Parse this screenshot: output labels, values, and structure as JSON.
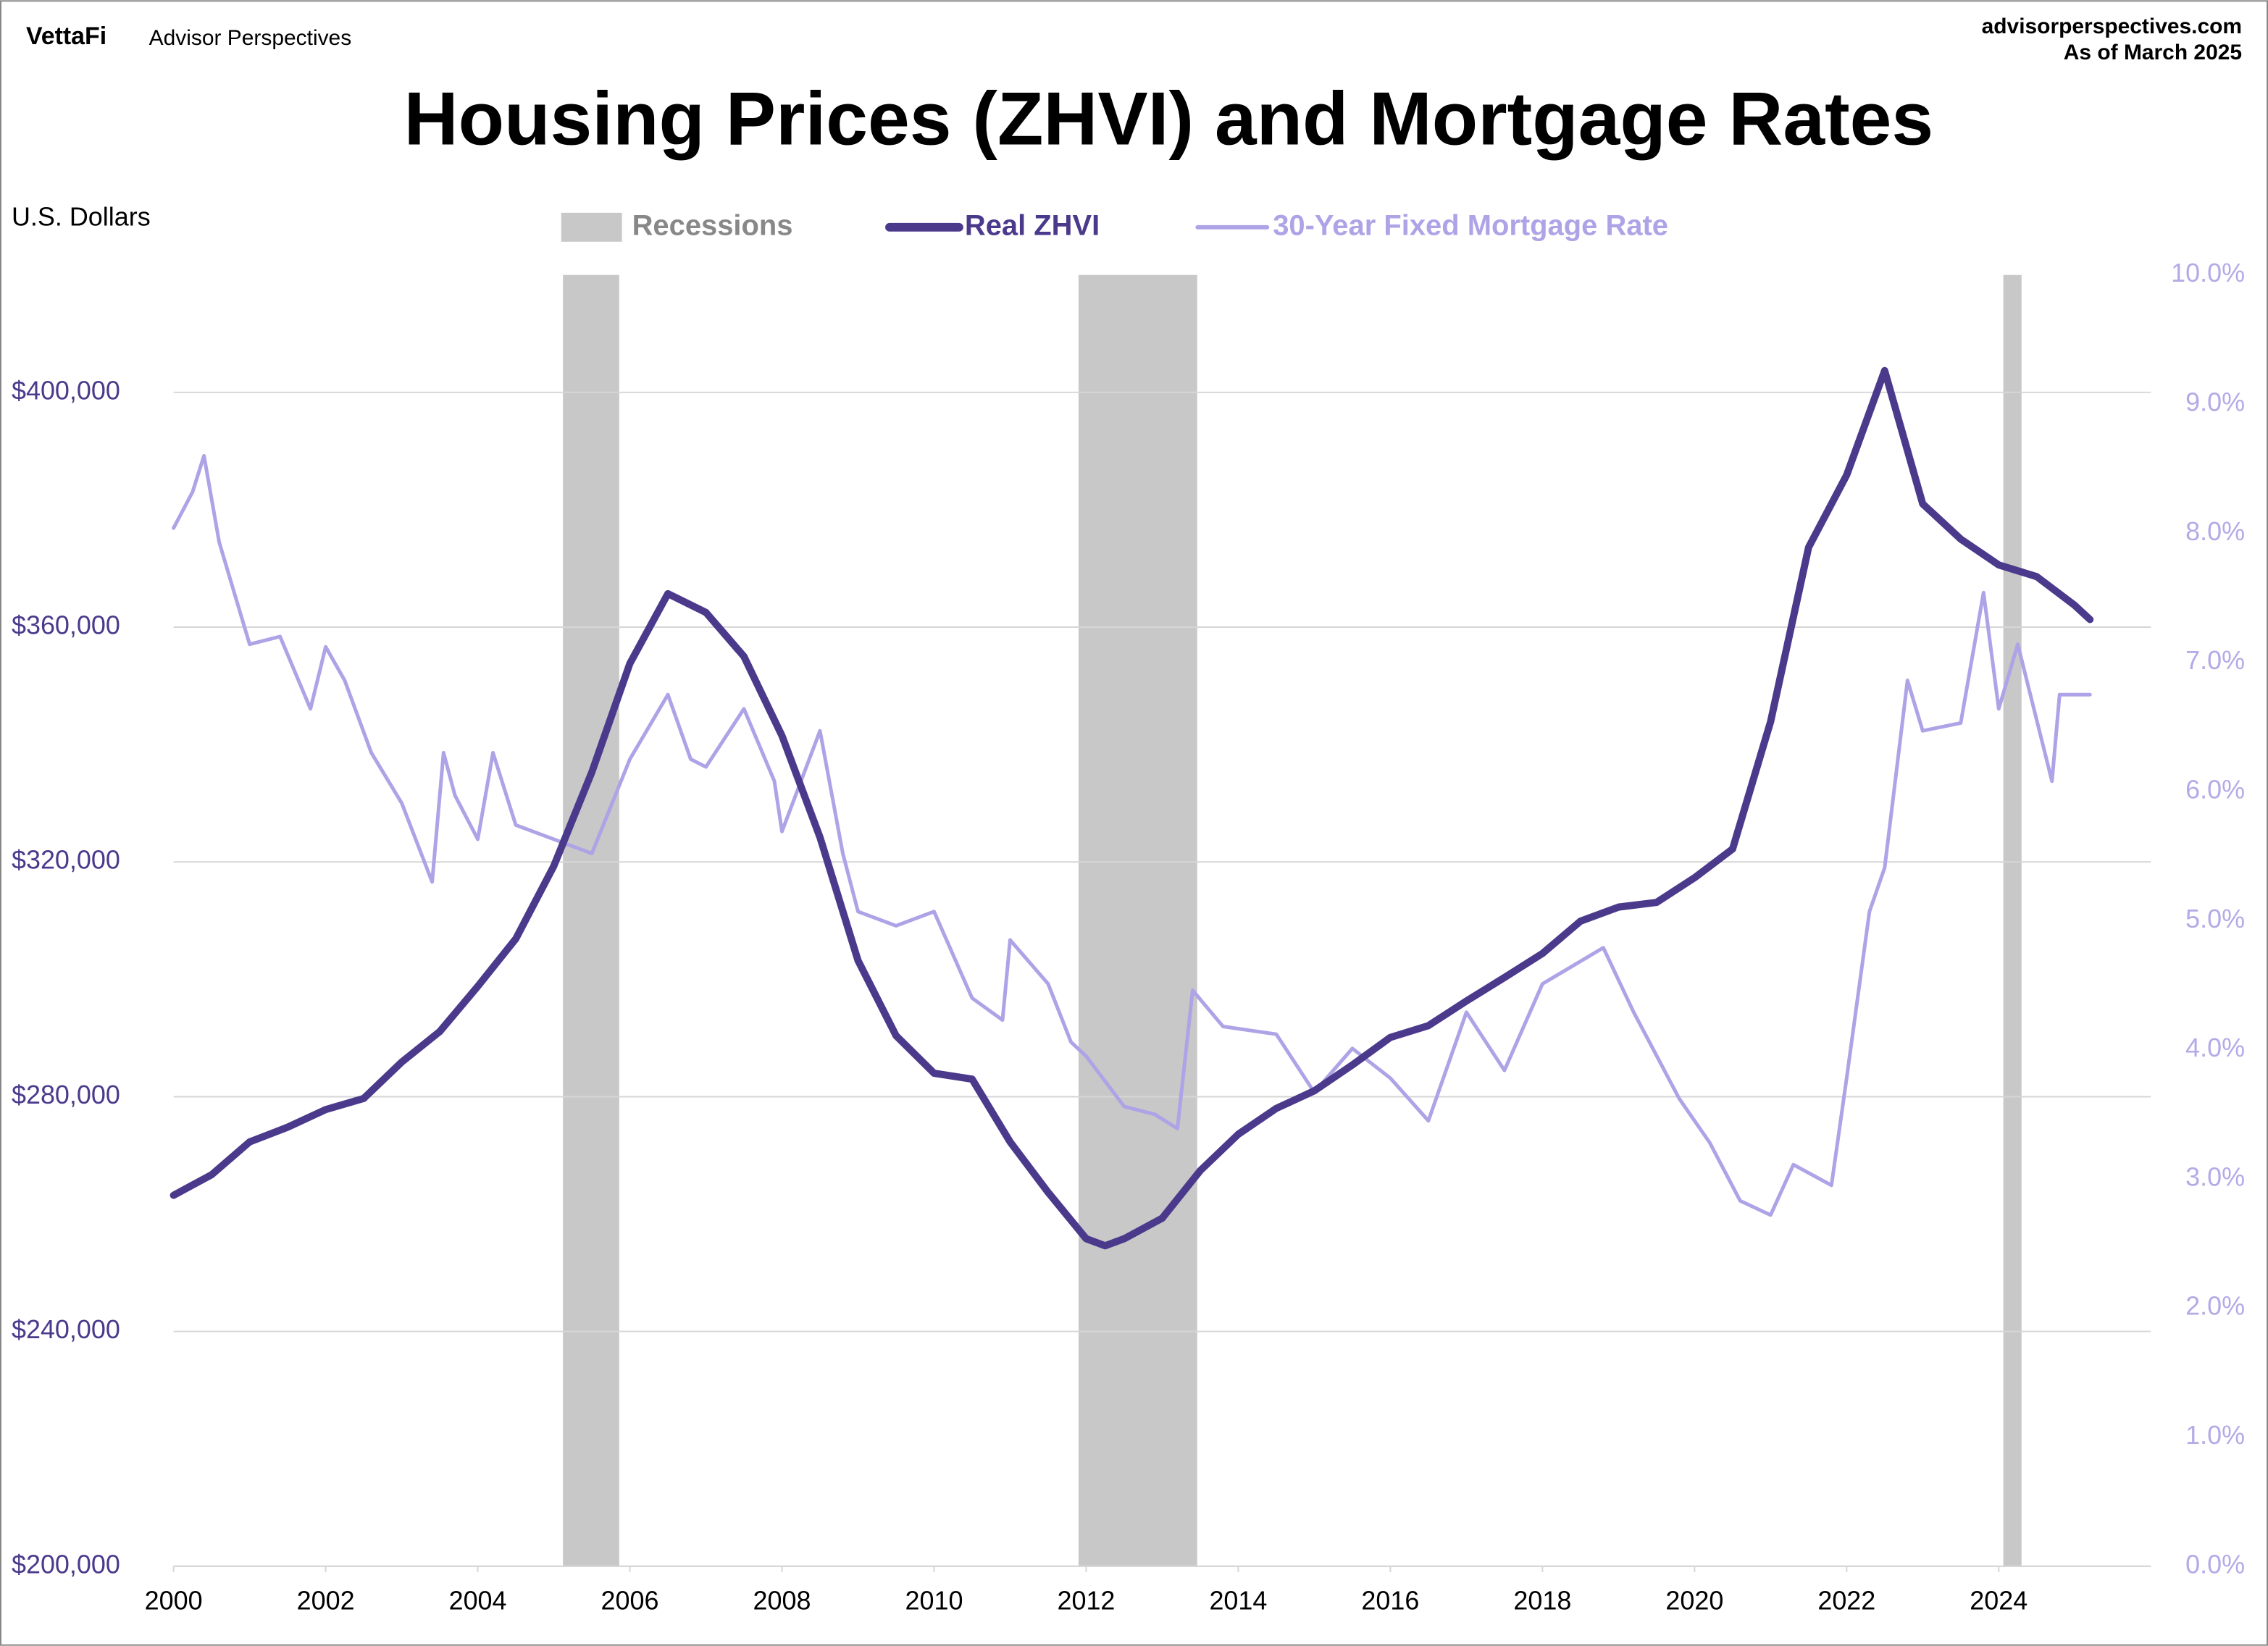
{
  "chart_data": {
    "type": "line",
    "brand": "VettaFi",
    "brand_sub": "Advisor Perspectives",
    "source": "advisorperspectives.com",
    "date_note": "As of March 2025",
    "title": "Housing Prices (ZHVI) and Mortgage Rates",
    "ylabel": "U.S. Dollars",
    "xlim": [
      2000,
      2026
    ],
    "xticks": [
      2000,
      2002,
      2004,
      2006,
      2008,
      2010,
      2012,
      2014,
      2016,
      2018,
      2020,
      2022,
      2024
    ],
    "ylim": [
      200000,
      420000
    ],
    "yticks": [
      {
        "value": 200000,
        "label": "$200,000"
      },
      {
        "value": 240000,
        "label": "$240,000"
      },
      {
        "value": 280000,
        "label": "$280,000"
      },
      {
        "value": 320000,
        "label": "$320,000"
      },
      {
        "value": 360000,
        "label": "$360,000"
      },
      {
        "value": 400000,
        "label": "$400,000"
      }
    ],
    "y2lim": [
      0,
      10
    ],
    "y2ticks": [
      {
        "value": 0,
        "label": "0.0%"
      },
      {
        "value": 1,
        "label": "1.0%"
      },
      {
        "value": 2,
        "label": "2.0%"
      },
      {
        "value": 3,
        "label": "3.0%"
      },
      {
        "value": 4,
        "label": "4.0%"
      },
      {
        "value": 5,
        "label": "5.0%"
      },
      {
        "value": 6,
        "label": "6.0%"
      },
      {
        "value": 7,
        "label": "7.0%"
      },
      {
        "value": 8,
        "label": "8.0%"
      },
      {
        "value": 9,
        "label": "9.0%"
      },
      {
        "value": 10,
        "label": "10.0%"
      }
    ],
    "grid": true,
    "recessions": {
      "name": "Recessions",
      "color": "#c8c8c8",
      "ranges": [
        [
          2005.12,
          2005.86
        ],
        [
          2011.9,
          2013.46
        ],
        [
          2024.06,
          2024.3
        ]
      ]
    },
    "series": [
      {
        "name": "Real ZHVI",
        "color": "#4b3a8c",
        "axis": "y",
        "x": [
          2000,
          2000.5,
          2001,
          2001.5,
          2002,
          2002.5,
          2003,
          2003.5,
          2004,
          2004.5,
          2005,
          2005.5,
          2006,
          2006.5,
          2007,
          2007.5,
          2008,
          2008.5,
          2009,
          2009.5,
          2010,
          2010.5,
          2011,
          2011.5,
          2012,
          2012.25,
          2012.5,
          2013,
          2013.5,
          2014,
          2014.5,
          2015,
          2015.5,
          2016,
          2016.5,
          2017,
          2017.5,
          2018,
          2018.5,
          2019,
          2019.5,
          2020,
          2020.5,
          2021,
          2021.5,
          2022,
          2022.5,
          2023,
          2023.5,
          2024,
          2024.5,
          2025,
          2025.2
        ],
        "values": [
          263200,
          266700,
          272300,
          274800,
          277800,
          279700,
          285900,
          291100,
          298800,
          306900,
          319300,
          335300,
          353800,
          365700,
          362500,
          355000,
          341500,
          324200,
          303200,
          290400,
          284000,
          283000,
          272300,
          263700,
          255800,
          254600,
          255800,
          259300,
          267400,
          273600,
          278000,
          281000,
          285400,
          290100,
          292100,
          296300,
          300300,
          304400,
          309900,
          312300,
          313100,
          317300,
          322200,
          343900,
          373600,
          385900,
          403700,
          381000,
          375000,
          370600,
          368600,
          363700,
          361300
        ]
      },
      {
        "name": "30-Year Fixed Mortgage Rate",
        "color": "#aea3e6",
        "axis": "y2",
        "x": [
          2000,
          2000.25,
          2000.4,
          2000.6,
          2001,
          2001.4,
          2001.8,
          2002,
          2002.25,
          2002.6,
          2003,
          2003.4,
          2003.55,
          2003.7,
          2004,
          2004.2,
          2004.5,
          2005,
          2005.5,
          2006,
          2006.5,
          2006.8,
          2007,
          2007.5,
          2007.9,
          2008,
          2008.5,
          2008.8,
          2009,
          2009.5,
          2010,
          2010.5,
          2010.9,
          2011,
          2011.5,
          2011.8,
          2012,
          2012.5,
          2012.9,
          2013.2,
          2013.4,
          2013.8,
          2014.5,
          2015,
          2015.5,
          2016,
          2016.5,
          2017,
          2017.5,
          2018,
          2018.8,
          2019.2,
          2019.8,
          2020.2,
          2020.6,
          2021,
          2021.3,
          2021.8,
          2022,
          2022.3,
          2022.5,
          2022.8,
          2023,
          2023.5,
          2023.8,
          2024,
          2024.25,
          2024.7,
          2024.8,
          2025.2
        ],
        "values": [
          8.04,
          8.32,
          8.6,
          7.93,
          7.14,
          7.2,
          6.64,
          7.12,
          6.86,
          6.3,
          5.91,
          5.3,
          6.3,
          5.97,
          5.63,
          6.3,
          5.74,
          5.63,
          5.52,
          6.25,
          6.75,
          6.25,
          6.19,
          6.64,
          6.08,
          5.69,
          6.47,
          5.52,
          5.07,
          4.96,
          5.07,
          4.4,
          4.23,
          4.85,
          4.51,
          4.06,
          3.95,
          3.56,
          3.5,
          3.39,
          4.46,
          4.18,
          4.12,
          3.67,
          4.01,
          3.78,
          3.45,
          4.29,
          3.84,
          4.51,
          4.79,
          4.29,
          3.62,
          3.28,
          2.83,
          2.72,
          3.11,
          2.95,
          3.78,
          5.07,
          5.41,
          6.86,
          6.47,
          6.53,
          7.54,
          6.64,
          7.14,
          6.08,
          6.75,
          6.75
        ]
      }
    ]
  }
}
